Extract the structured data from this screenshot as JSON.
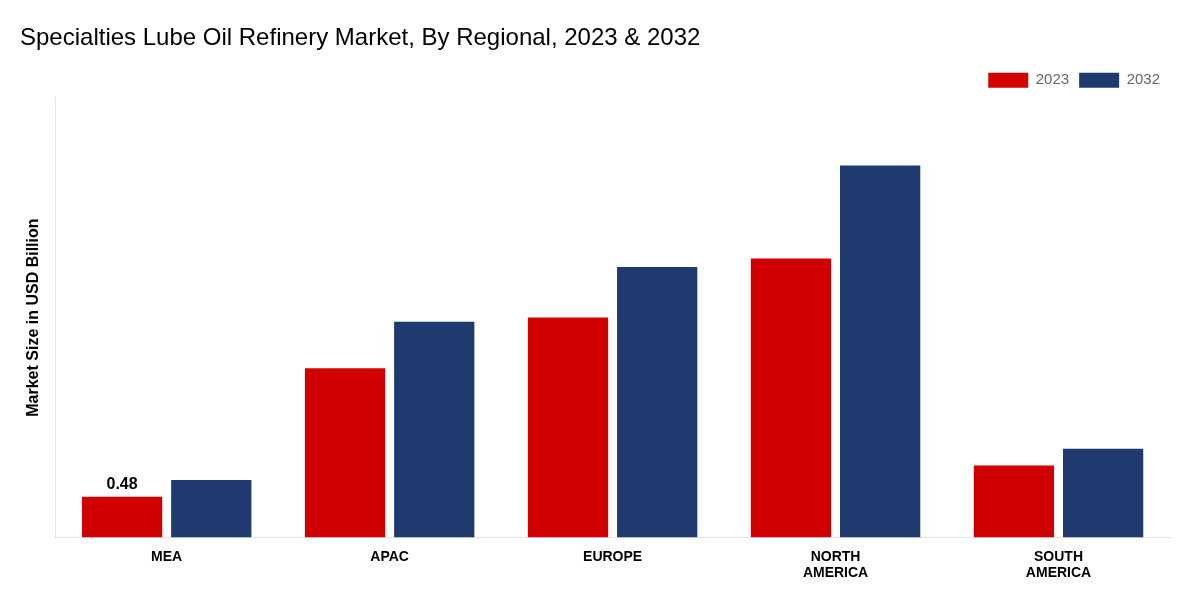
{
  "chart_data": {
    "type": "bar",
    "title": "Specialties Lube Oil Refinery Market, By Regional, 2023 & 2032",
    "y_label": "Market Size in USD Billion",
    "categories": [
      "MEA",
      "APAC",
      "EUROPE",
      "NORTH\nAMERICA",
      "SOUTH\nAMERICA"
    ],
    "series": [
      {
        "name": "2023",
        "color": "#d10000",
        "values": [
          0.48,
          2.0,
          2.6,
          3.3,
          0.85
        ]
      },
      {
        "name": "2032",
        "color": "#1e3a6e",
        "values": [
          0.68,
          2.55,
          3.2,
          4.4,
          1.05
        ]
      }
    ],
    "annotations": [
      {
        "text": "0.48",
        "category": "MEA",
        "series": "2023"
      }
    ],
    "ylim": [
      0,
      5.2
    ],
    "tick_labels": "x",
    "grid": false,
    "legend": "upper right"
  }
}
